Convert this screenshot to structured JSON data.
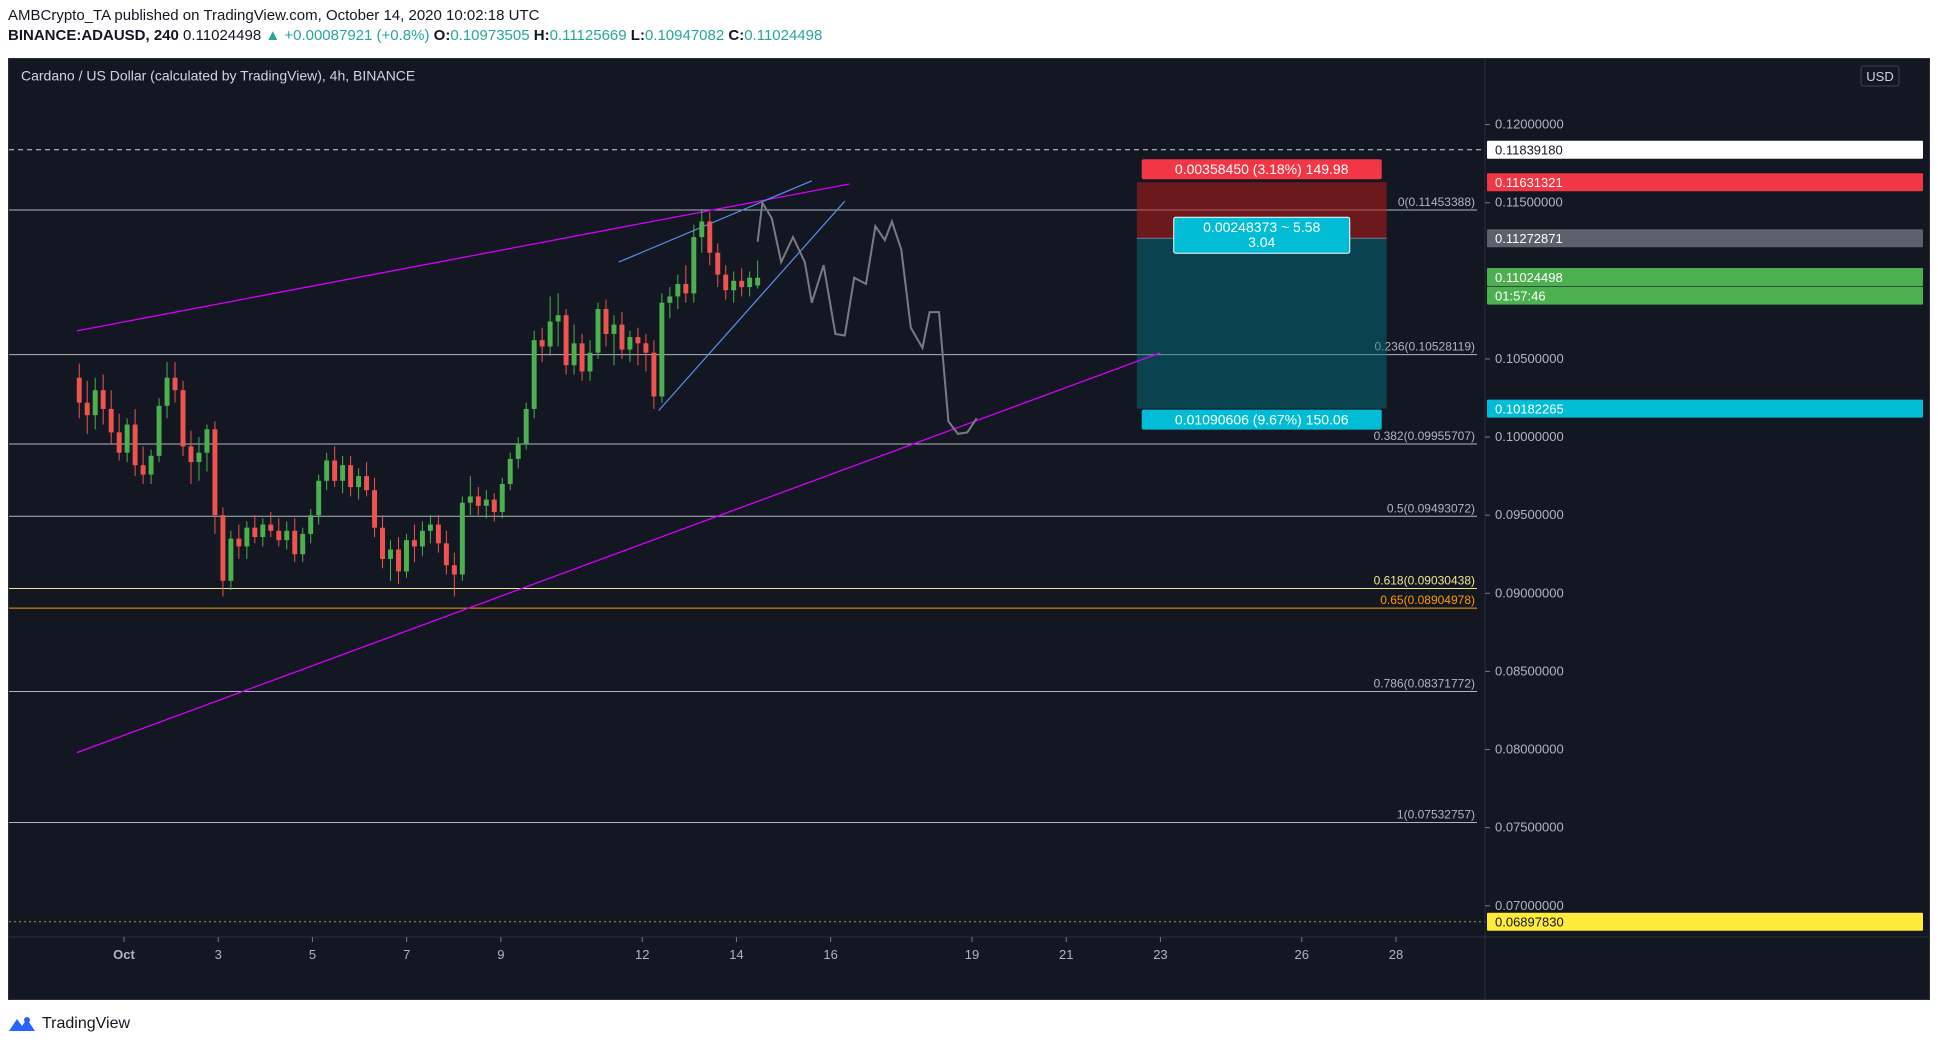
{
  "header": {
    "line1": "AMBCrypto_TA published on TradingView.com, October 14, 2020 10:02:18 UTC",
    "symbol": "BINANCE:ADAUSD, 240",
    "last": "0.11024498",
    "change": "▲ +0.00087921 (+0.8%)",
    "o_label": "O:",
    "o": "0.10973505",
    "h_label": "H:",
    "h": "0.11125669",
    "l_label": "L:",
    "l": "0.10947082",
    "c_label": "C:",
    "c": "0.11024498"
  },
  "chart_title": "Cardano / US Dollar (calculated by TradingView), 4h, BINANCE",
  "currency_button": "USD",
  "footer": {
    "brand": "TradingView",
    "logo_icon": "tradingview-logo-icon"
  },
  "chart_data": {
    "type": "candlestick",
    "title": "Cardano / US Dollar (calculated by TradingView), 4h, BINANCE",
    "x_ticks": [
      "Oct",
      "3",
      "5",
      "7",
      "9",
      "12",
      "14",
      "16",
      "19",
      "21",
      "23",
      "26",
      "28"
    ],
    "x_tick_days": [
      1,
      3,
      5,
      7,
      9,
      12,
      14,
      16,
      19,
      21,
      23,
      26,
      28
    ],
    "y_ticks": [
      "0.12000000",
      "0.11500000",
      "0.10500000",
      "0.10000000",
      "0.09500000",
      "0.09000000",
      "0.08500000",
      "0.08000000",
      "0.07500000",
      "0.07000000"
    ],
    "y_tick_values": [
      0.12,
      0.115,
      0.105,
      0.1,
      0.095,
      0.09,
      0.085,
      0.08,
      0.075,
      0.07
    ],
    "ylim": [
      0.068,
      0.1242
    ],
    "xlim_days": [
      0.0,
      30.0
    ],
    "colors": {
      "up": "#26a69a",
      "up_body": "#4caf50",
      "down": "#ef5350",
      "fib": "#b2b5be",
      "fib618": "#f0e68c",
      "fib65": "#ff9800",
      "trend": "#d500f9",
      "wedge": "#5b8def",
      "projection": "#787b86"
    },
    "candles": [
      {
        "o": 0.1038,
        "h": 0.1047,
        "l": 0.1012,
        "c": 0.1022
      },
      {
        "o": 0.1022,
        "h": 0.1036,
        "l": 0.1002,
        "c": 0.1014
      },
      {
        "o": 0.1014,
        "h": 0.1038,
        "l": 0.1005,
        "c": 0.103
      },
      {
        "o": 0.103,
        "h": 0.104,
        "l": 0.1008,
        "c": 0.1018
      },
      {
        "o": 0.1018,
        "h": 0.103,
        "l": 0.0996,
        "c": 0.1003
      },
      {
        "o": 0.1003,
        "h": 0.1015,
        "l": 0.0985,
        "c": 0.099
      },
      {
        "o": 0.099,
        "h": 0.1012,
        "l": 0.0984,
        "c": 0.1008
      },
      {
        "o": 0.1008,
        "h": 0.1018,
        "l": 0.0975,
        "c": 0.0982
      },
      {
        "o": 0.0982,
        "h": 0.0994,
        "l": 0.097,
        "c": 0.0976
      },
      {
        "o": 0.0976,
        "h": 0.0992,
        "l": 0.097,
        "c": 0.0988
      },
      {
        "o": 0.0988,
        "h": 0.1025,
        "l": 0.0984,
        "c": 0.102
      },
      {
        "o": 0.102,
        "h": 0.1048,
        "l": 0.1012,
        "c": 0.1038
      },
      {
        "o": 0.1038,
        "h": 0.1048,
        "l": 0.1022,
        "c": 0.103
      },
      {
        "o": 0.103,
        "h": 0.1036,
        "l": 0.0988,
        "c": 0.0994
      },
      {
        "o": 0.0994,
        "h": 0.1004,
        "l": 0.097,
        "c": 0.0984
      },
      {
        "o": 0.0984,
        "h": 0.1,
        "l": 0.0972,
        "c": 0.099
      },
      {
        "o": 0.099,
        "h": 0.1008,
        "l": 0.0978,
        "c": 0.1005
      },
      {
        "o": 0.1005,
        "h": 0.101,
        "l": 0.0938,
        "c": 0.095
      },
      {
        "o": 0.095,
        "h": 0.0955,
        "l": 0.0898,
        "c": 0.0908
      },
      {
        "o": 0.0908,
        "h": 0.094,
        "l": 0.0902,
        "c": 0.0935
      },
      {
        "o": 0.0935,
        "h": 0.0944,
        "l": 0.0922,
        "c": 0.093
      },
      {
        "o": 0.093,
        "h": 0.0946,
        "l": 0.0922,
        "c": 0.0942
      },
      {
        "o": 0.0942,
        "h": 0.095,
        "l": 0.0932,
        "c": 0.0936
      },
      {
        "o": 0.0936,
        "h": 0.0948,
        "l": 0.093,
        "c": 0.0944
      },
      {
        "o": 0.0944,
        "h": 0.0952,
        "l": 0.0936,
        "c": 0.094
      },
      {
        "o": 0.094,
        "h": 0.0948,
        "l": 0.093,
        "c": 0.0934
      },
      {
        "o": 0.0934,
        "h": 0.0946,
        "l": 0.0928,
        "c": 0.094
      },
      {
        "o": 0.094,
        "h": 0.0948,
        "l": 0.092,
        "c": 0.0925
      },
      {
        "o": 0.0925,
        "h": 0.0942,
        "l": 0.092,
        "c": 0.0938
      },
      {
        "o": 0.0938,
        "h": 0.0954,
        "l": 0.0932,
        "c": 0.095
      },
      {
        "o": 0.095,
        "h": 0.0976,
        "l": 0.0944,
        "c": 0.0972
      },
      {
        "o": 0.0972,
        "h": 0.099,
        "l": 0.0966,
        "c": 0.0985
      },
      {
        "o": 0.0985,
        "h": 0.0994,
        "l": 0.0968,
        "c": 0.0972
      },
      {
        "o": 0.0972,
        "h": 0.0988,
        "l": 0.0964,
        "c": 0.0982
      },
      {
        "o": 0.0982,
        "h": 0.0988,
        "l": 0.0962,
        "c": 0.0968
      },
      {
        "o": 0.0968,
        "h": 0.098,
        "l": 0.096,
        "c": 0.0975
      },
      {
        "o": 0.0975,
        "h": 0.0984,
        "l": 0.0962,
        "c": 0.0966
      },
      {
        "o": 0.0966,
        "h": 0.0974,
        "l": 0.0936,
        "c": 0.0942
      },
      {
        "o": 0.0942,
        "h": 0.095,
        "l": 0.0916,
        "c": 0.0922
      },
      {
        "o": 0.0922,
        "h": 0.0934,
        "l": 0.0908,
        "c": 0.0928
      },
      {
        "o": 0.0928,
        "h": 0.0936,
        "l": 0.0906,
        "c": 0.0914
      },
      {
        "o": 0.0914,
        "h": 0.0938,
        "l": 0.091,
        "c": 0.0934
      },
      {
        "o": 0.0934,
        "h": 0.0944,
        "l": 0.092,
        "c": 0.093
      },
      {
        "o": 0.093,
        "h": 0.0946,
        "l": 0.0924,
        "c": 0.094
      },
      {
        "o": 0.094,
        "h": 0.095,
        "l": 0.0932,
        "c": 0.0944
      },
      {
        "o": 0.0944,
        "h": 0.095,
        "l": 0.0926,
        "c": 0.0932
      },
      {
        "o": 0.0932,
        "h": 0.094,
        "l": 0.0912,
        "c": 0.0918
      },
      {
        "o": 0.0918,
        "h": 0.0926,
        "l": 0.0898,
        "c": 0.0912
      },
      {
        "o": 0.0912,
        "h": 0.0962,
        "l": 0.0908,
        "c": 0.0958
      },
      {
        "o": 0.0958,
        "h": 0.0975,
        "l": 0.095,
        "c": 0.0962
      },
      {
        "o": 0.0962,
        "h": 0.0968,
        "l": 0.095,
        "c": 0.0956
      },
      {
        "o": 0.0956,
        "h": 0.0966,
        "l": 0.0948,
        "c": 0.096
      },
      {
        "o": 0.096,
        "h": 0.0964,
        "l": 0.0946,
        "c": 0.0952
      },
      {
        "o": 0.0952,
        "h": 0.0974,
        "l": 0.0948,
        "c": 0.097
      },
      {
        "o": 0.097,
        "h": 0.099,
        "l": 0.0966,
        "c": 0.0986
      },
      {
        "o": 0.0986,
        "h": 0.1,
        "l": 0.098,
        "c": 0.0996
      },
      {
        "o": 0.0996,
        "h": 0.1022,
        "l": 0.0992,
        "c": 0.1018
      },
      {
        "o": 0.1018,
        "h": 0.1068,
        "l": 0.1012,
        "c": 0.1062
      },
      {
        "o": 0.1062,
        "h": 0.107,
        "l": 0.1048,
        "c": 0.1058
      },
      {
        "o": 0.1058,
        "h": 0.109,
        "l": 0.1052,
        "c": 0.1074
      },
      {
        "o": 0.1074,
        "h": 0.1092,
        "l": 0.1058,
        "c": 0.1078
      },
      {
        "o": 0.1078,
        "h": 0.1082,
        "l": 0.104,
        "c": 0.1046
      },
      {
        "o": 0.1046,
        "h": 0.1072,
        "l": 0.104,
        "c": 0.106
      },
      {
        "o": 0.106,
        "h": 0.1066,
        "l": 0.1036,
        "c": 0.1042
      },
      {
        "o": 0.1042,
        "h": 0.1062,
        "l": 0.1036,
        "c": 0.1054
      },
      {
        "o": 0.1054,
        "h": 0.1086,
        "l": 0.105,
        "c": 0.1082
      },
      {
        "o": 0.1082,
        "h": 0.1088,
        "l": 0.1058,
        "c": 0.1066
      },
      {
        "o": 0.1066,
        "h": 0.1078,
        "l": 0.1046,
        "c": 0.1072
      },
      {
        "o": 0.1072,
        "h": 0.108,
        "l": 0.105,
        "c": 0.1056
      },
      {
        "o": 0.1056,
        "h": 0.1068,
        "l": 0.1048,
        "c": 0.1064
      },
      {
        "o": 0.1064,
        "h": 0.107,
        "l": 0.1046,
        "c": 0.106
      },
      {
        "o": 0.106,
        "h": 0.1066,
        "l": 0.1042,
        "c": 0.1054
      },
      {
        "o": 0.1054,
        "h": 0.1062,
        "l": 0.1018,
        "c": 0.1026
      },
      {
        "o": 0.1026,
        "h": 0.1092,
        "l": 0.1022,
        "c": 0.1086
      },
      {
        "o": 0.1086,
        "h": 0.1096,
        "l": 0.1076,
        "c": 0.109
      },
      {
        "o": 0.109,
        "h": 0.1104,
        "l": 0.1082,
        "c": 0.1098
      },
      {
        "o": 0.1098,
        "h": 0.111,
        "l": 0.1086,
        "c": 0.1092
      },
      {
        "o": 0.1092,
        "h": 0.1136,
        "l": 0.1086,
        "c": 0.1128
      },
      {
        "o": 0.1128,
        "h": 0.1146,
        "l": 0.1118,
        "c": 0.1138
      },
      {
        "o": 0.1138,
        "h": 0.1144,
        "l": 0.111,
        "c": 0.1118
      },
      {
        "o": 0.1118,
        "h": 0.1124,
        "l": 0.1096,
        "c": 0.1104
      },
      {
        "o": 0.1104,
        "h": 0.111,
        "l": 0.1088,
        "c": 0.1094
      },
      {
        "o": 0.1094,
        "h": 0.1106,
        "l": 0.1086,
        "c": 0.11
      },
      {
        "o": 0.11,
        "h": 0.1108,
        "l": 0.109,
        "c": 0.1096
      },
      {
        "o": 0.1096,
        "h": 0.1106,
        "l": 0.109,
        "c": 0.1102
      },
      {
        "o": 0.1097,
        "h": 0.1113,
        "l": 0.1095,
        "c": 0.1102
      }
    ],
    "projection": [
      {
        "t": 14.45,
        "p": 0.1125
      },
      {
        "t": 14.55,
        "p": 0.115
      },
      {
        "t": 14.75,
        "p": 0.114
      },
      {
        "t": 14.95,
        "p": 0.1112
      },
      {
        "t": 15.2,
        "p": 0.1128
      },
      {
        "t": 15.45,
        "p": 0.1112
      },
      {
        "t": 15.6,
        "p": 0.1086
      },
      {
        "t": 15.85,
        "p": 0.111
      },
      {
        "t": 16.1,
        "p": 0.1066
      },
      {
        "t": 16.3,
        "p": 0.1065
      },
      {
        "t": 16.5,
        "p": 0.1102
      },
      {
        "t": 16.75,
        "p": 0.1098
      },
      {
        "t": 16.95,
        "p": 0.1135
      },
      {
        "t": 17.15,
        "p": 0.1126
      },
      {
        "t": 17.3,
        "p": 0.1138
      },
      {
        "t": 17.5,
        "p": 0.112
      },
      {
        "t": 17.7,
        "p": 0.107
      },
      {
        "t": 17.95,
        "p": 0.1057
      },
      {
        "t": 18.1,
        "p": 0.108
      },
      {
        "t": 18.3,
        "p": 0.108
      },
      {
        "t": 18.5,
        "p": 0.101
      },
      {
        "t": 18.7,
        "p": 0.1002
      },
      {
        "t": 18.9,
        "p": 0.1003
      },
      {
        "t": 19.1,
        "p": 0.1012
      }
    ],
    "trendlines": [
      {
        "name": "upper-channel",
        "kind": "trend",
        "t1": 0.0,
        "p1": 0.1068,
        "t2": 16.4,
        "p2": 0.1162
      },
      {
        "name": "lower-channel",
        "kind": "trend",
        "t1": 0.0,
        "p1": 0.0798,
        "t2": 23.0,
        "p2": 0.1054
      },
      {
        "name": "wedge-upper",
        "kind": "wedge",
        "t1": 11.5,
        "p1": 0.1112,
        "t2": 15.6,
        "p2": 0.1164
      },
      {
        "name": "wedge-lower",
        "kind": "wedge",
        "t1": 12.35,
        "p1": 0.1017,
        "t2": 16.3,
        "p2": 0.1151
      }
    ],
    "fib_levels": [
      {
        "ratio": "0",
        "value": "0.11453388",
        "v": 0.11453388,
        "color": "fib"
      },
      {
        "ratio": "0.236",
        "value": "0.10528119",
        "v": 0.10528119,
        "color": "fib"
      },
      {
        "ratio": "0.382",
        "value": "0.09955707",
        "v": 0.09955707,
        "color": "fib"
      },
      {
        "ratio": "0.5",
        "value": "0.09493072",
        "v": 0.09493072,
        "color": "fib"
      },
      {
        "ratio": "0.618",
        "value": "0.09030438",
        "v": 0.09030438,
        "color": "fib618"
      },
      {
        "ratio": "0.65",
        "value": "0.08904978",
        "v": 0.08904978,
        "color": "fib65"
      },
      {
        "ratio": "0.786",
        "value": "0.08371772",
        "v": 0.08371772,
        "color": "fib"
      },
      {
        "ratio": "1",
        "value": "0.07532757",
        "v": 0.07532757,
        "color": "fib"
      }
    ],
    "position": {
      "t_start": 22.5,
      "t_end": 27.8,
      "stop": 0.11631321,
      "entry": 0.11272871,
      "target": 0.10182265,
      "stop_label": "0.00358450 (3.18%) 149.98",
      "mid_label_1": "0.00248373 ~ 5.58",
      "mid_label_2": "3.04",
      "target_label": "0.01090606 (9.67%) 150.06"
    },
    "dashed_levels": [
      {
        "v": 0.1183918
      },
      {
        "v": 0.0689783
      }
    ],
    "price_labels": [
      {
        "text": "0.11839180",
        "v": 0.1183918,
        "bg": "#ffffff",
        "fg": "#131722"
      },
      {
        "text": "0.11631321",
        "v": 0.11631321,
        "bg": "#f23645",
        "fg": "#ffffff"
      },
      {
        "text": "0.11272871",
        "v": 0.11272871,
        "bg": "#5d606b",
        "fg": "#ffffff"
      },
      {
        "text": "0.11024498",
        "v": 0.11024498,
        "bg": "#4caf50",
        "fg": "#ffffff"
      },
      {
        "text": "01:57:46",
        "v": 0.10905,
        "bg": "#4caf50",
        "fg": "#ffffff"
      },
      {
        "text": "0.10182265",
        "v": 0.10182265,
        "bg": "#00bcd4",
        "fg": "#ffffff"
      },
      {
        "text": "0.06897830",
        "v": 0.0689783,
        "bg": "#ffeb3b",
        "fg": "#131722"
      }
    ]
  }
}
